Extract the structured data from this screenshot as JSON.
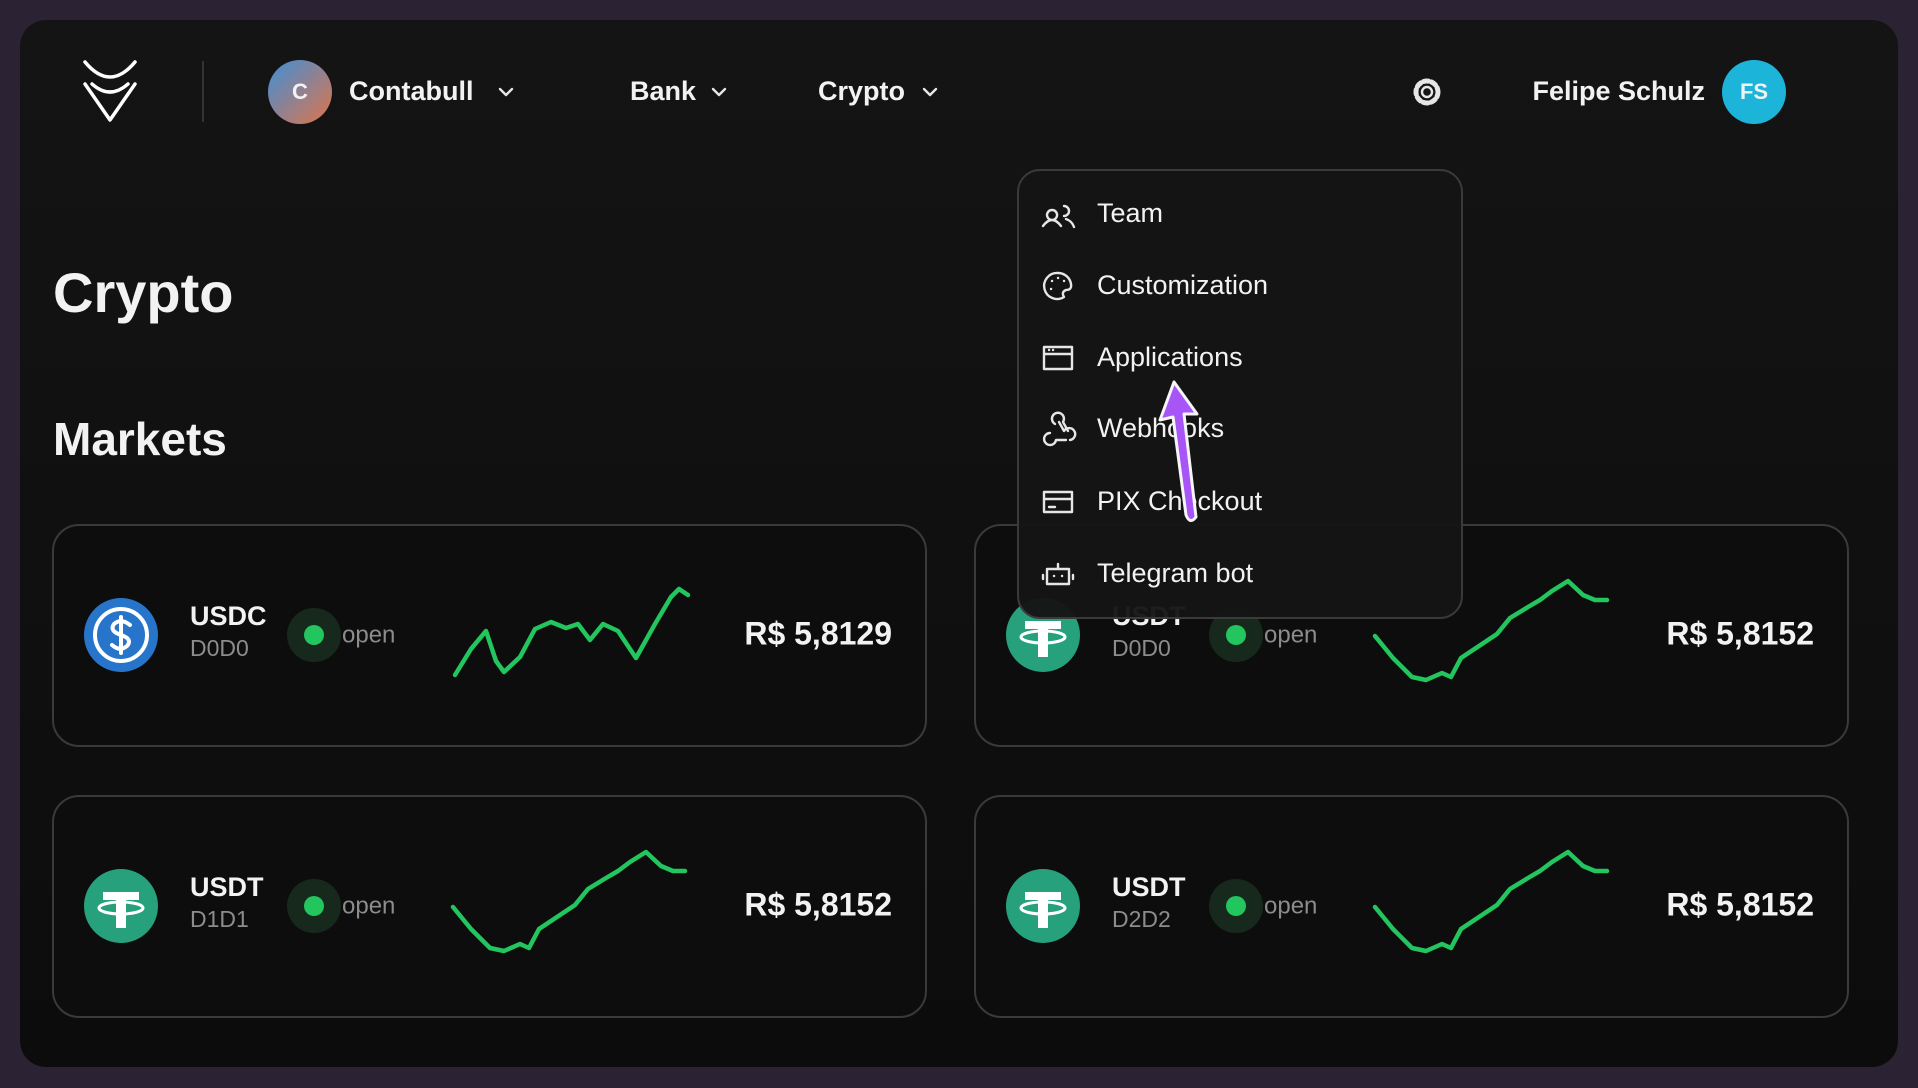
{
  "nav": {
    "org": {
      "initial": "C",
      "name": "Contabull"
    },
    "menus": [
      "Bank",
      "Crypto"
    ],
    "user": {
      "name": "Felipe Schulz",
      "initials": "FS"
    }
  },
  "settings_menu": {
    "items": [
      "Team",
      "Customization",
      "Applications",
      "Webhooks",
      "PIX Checkout",
      "Telegram bot"
    ]
  },
  "page": {
    "title": "Crypto",
    "section": "Markets"
  },
  "markets": [
    {
      "symbol": "USDC",
      "pair": "D0D0",
      "status": "open",
      "price": "R$ 5,8129",
      "color": "#2775ca"
    },
    {
      "symbol": "USDT",
      "pair": "D0D0",
      "status": "open",
      "price": "R$ 5,8152",
      "color": "#26a17b"
    },
    {
      "symbol": "USDT",
      "pair": "D1D1",
      "status": "open",
      "price": "R$ 5,8152",
      "color": "#26a17b"
    },
    {
      "symbol": "USDT",
      "pair": "D2D2",
      "status": "open",
      "price": "R$ 5,8152",
      "color": "#26a17b"
    }
  ]
}
